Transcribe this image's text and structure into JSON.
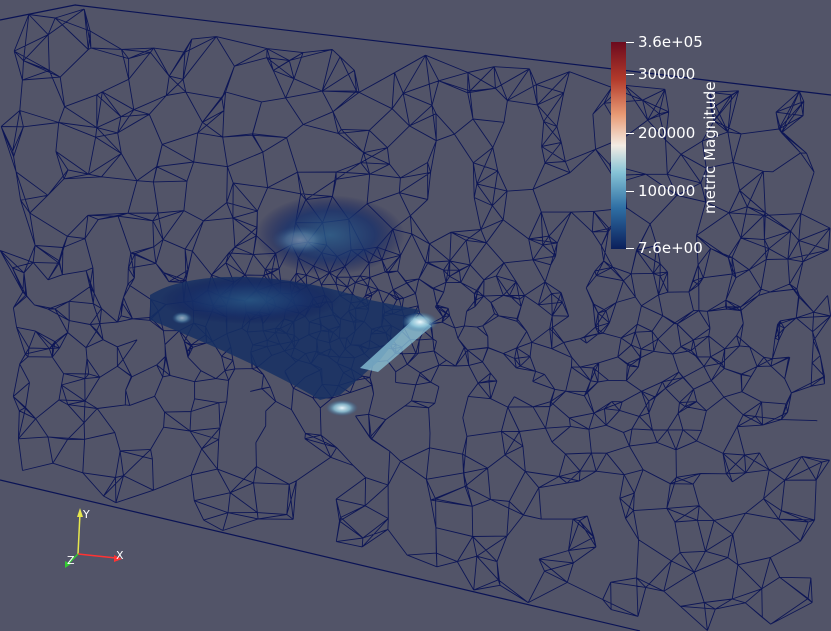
{
  "view": {
    "background": "#525468",
    "mesh_color": "#0a1355"
  },
  "scalar_bar": {
    "title": "metric Magnitude",
    "max_label": "3.6e+05",
    "min_label": "7.6e+00",
    "labels": [
      "300000",
      "200000",
      "100000"
    ],
    "colormap": [
      "#6c0a1e",
      "#b23a2b",
      "#e89a74",
      "#f3ece4",
      "#86c3d6",
      "#2f6fa4",
      "#0b1f5b"
    ]
  },
  "axes": {
    "x_label": "X",
    "y_label": "Y",
    "z_label": "Z",
    "x_color": "#ff3333",
    "y_color": "#e6e64d",
    "z_color": "#33cc33"
  }
}
